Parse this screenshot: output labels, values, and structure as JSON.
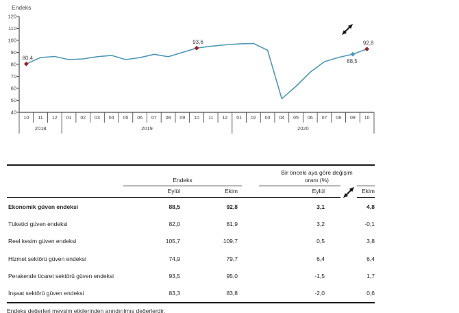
{
  "colors": {
    "line": "#4e97b5",
    "marker": "#9c2127",
    "axis": "#4d4d4d",
    "text": "#3f3f3f",
    "border": "#1a1a1a"
  },
  "chart_data": {
    "type": "line",
    "title": "",
    "axis_label": "Endeks",
    "ylim": [
      40,
      120
    ],
    "yticks": [
      40,
      50,
      60,
      70,
      80,
      90,
      100,
      110,
      120
    ],
    "months": [
      "10",
      "11",
      "12",
      "01",
      "02",
      "03",
      "04",
      "05",
      "06",
      "07",
      "08",
      "09",
      "10",
      "11",
      "12",
      "01",
      "02",
      "03",
      "04",
      "05",
      "06",
      "07",
      "08",
      "09",
      "10"
    ],
    "year_groups": [
      {
        "label": "2018",
        "count": 3
      },
      {
        "label": "2019",
        "count": 12
      },
      {
        "label": "2020",
        "count": 10
      }
    ],
    "values": [
      80.4,
      85.7,
      86.6,
      84.0,
      84.6,
      86.4,
      87.5,
      84.0,
      85.6,
      88.4,
      86.4,
      90.0,
      93.6,
      95.1,
      96.3,
      97.1,
      97.5,
      91.8,
      51.3,
      61.7,
      73.5,
      82.2,
      85.8,
      88.5,
      92.8
    ],
    "highlighted_points": [
      {
        "index": 0,
        "label": "80,4",
        "color": "accent",
        "label_pos": "above"
      },
      {
        "index": 12,
        "label": "93,6",
        "color": "accent",
        "label_pos": "above"
      },
      {
        "index": 23,
        "label": "88,5",
        "color": "line",
        "label_pos": "below"
      },
      {
        "index": 24,
        "label": "92,8",
        "color": "accent",
        "label_pos": "above"
      }
    ]
  },
  "table": {
    "group_headers": [
      {
        "label": "Endeks"
      },
      {
        "label": "Bir önceki aya göre değişim oranı (%)"
      }
    ],
    "sub_headers": [
      "Eylül",
      "Ekim",
      "Eylül",
      "Ekim"
    ],
    "rows": [
      {
        "name": "Ekonomik güven endeksi",
        "bold": true,
        "values": [
          "88,5",
          "92,8",
          "3,1",
          "4,8"
        ]
      },
      {
        "name": "Tüketici güven endeksi",
        "bold": false,
        "values": [
          "82,0",
          "81,9",
          "3,2",
          "-0,1"
        ]
      },
      {
        "name": "Reel kesim güven endeksi",
        "bold": false,
        "values": [
          "105,7",
          "109,7",
          "0,5",
          "3,8"
        ]
      },
      {
        "name": "Hizmet sektörü güven endeksi",
        "bold": false,
        "values": [
          "74,9",
          "79,7",
          "6,4",
          "6,4"
        ]
      },
      {
        "name": "Perakende ticaret sektörü güven endeksi",
        "bold": false,
        "values": [
          "93,5",
          "95,0",
          "-1,5",
          "1,7"
        ]
      },
      {
        "name": "İnşaat sektörü güven endeksi",
        "bold": false,
        "values": [
          "83,3",
          "83,8",
          "-2,0",
          "0,6"
        ]
      }
    ],
    "footnote": "Endeks değerleri mevsim etkilerinden arındırılmış değerlerdir."
  }
}
